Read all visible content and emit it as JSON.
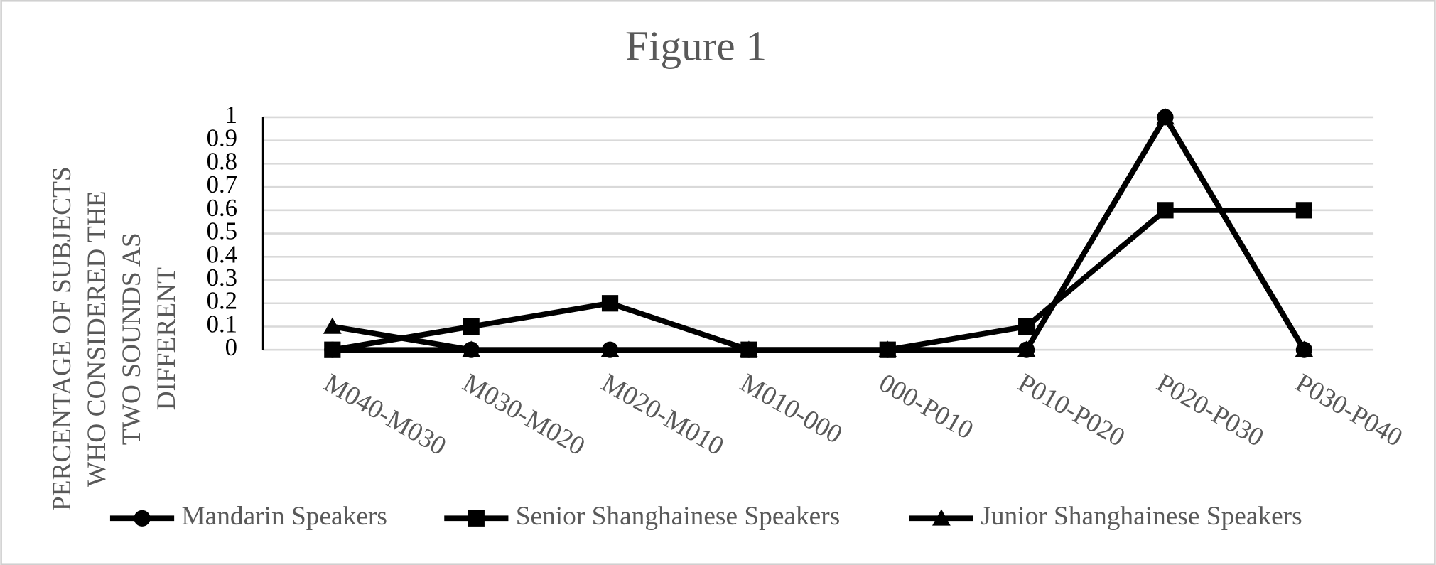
{
  "chart_data": {
    "type": "line",
    "title": "Figure 1",
    "y_label": [
      "PERCENTAGE OF SUBJECTS",
      "WHO CONSIDERED THE",
      "TWO SOUNDS AS",
      "DIFFERENT"
    ],
    "categories": [
      "M040-M030",
      "M030-M020",
      "M020-M010",
      "M010-000",
      "000-P010",
      "P010-P020",
      "P020-P030",
      "P030-P040"
    ],
    "series": [
      {
        "name": "Mandarin Speakers",
        "color": "#000000",
        "marker": "circle",
        "values": [
          0,
          0,
          0,
          0,
          0,
          0,
          1,
          0
        ]
      },
      {
        "name": "Senior Shanghainese Speakers",
        "color": "#000000",
        "marker": "square",
        "values": [
          0,
          0.1,
          0.2,
          0,
          0,
          0.1,
          0.6,
          0.6
        ]
      },
      {
        "name": "Junior Shanghainese Speakers",
        "color": "#000000",
        "marker": "triangle",
        "values": [
          0.1,
          0,
          0,
          0,
          0,
          0,
          1,
          0
        ]
      }
    ],
    "ylim": [
      0,
      1
    ],
    "yticks": [
      0,
      0.1,
      0.2,
      0.3,
      0.4,
      0.5,
      0.6,
      0.7,
      0.8,
      0.9,
      1
    ],
    "grid": true,
    "legend": "bottom"
  }
}
